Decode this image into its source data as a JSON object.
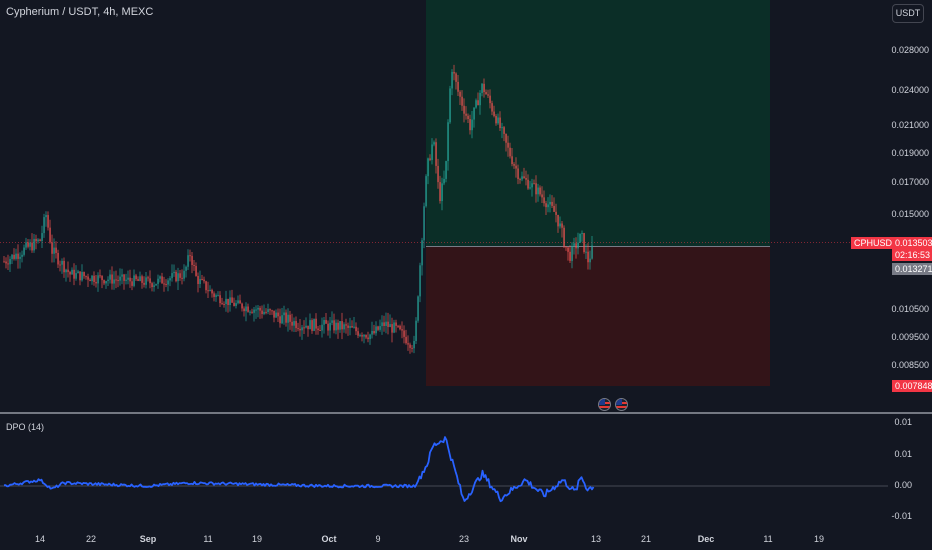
{
  "header": {
    "symbol_line": "Cypherium / USDT, 4h, MEXC",
    "currency_button": "USDT"
  },
  "price_axis": {
    "labels": [
      "0.028000",
      "0.024000",
      "0.021000",
      "0.019000",
      "0.017000",
      "0.015000",
      "0.010500",
      "0.009500",
      "0.008500"
    ]
  },
  "tags": {
    "symbol": "CPHUSDT",
    "last_price": "0.013503",
    "countdown": "02:16:53",
    "entry_price": "0.013271",
    "stop_price": "0.007848"
  },
  "indicator": {
    "title": "DPO (14)",
    "axis_labels": [
      "0.01",
      "0.01",
      "0.00",
      "-0.01"
    ]
  },
  "time_axis": {
    "labels": [
      {
        "text": "14",
        "bold": false
      },
      {
        "text": "22",
        "bold": false
      },
      {
        "text": "Sep",
        "bold": true
      },
      {
        "text": "11",
        "bold": false
      },
      {
        "text": "19",
        "bold": false
      },
      {
        "text": "Oct",
        "bold": true
      },
      {
        "text": "9",
        "bold": false
      },
      {
        "text": "23",
        "bold": false
      },
      {
        "text": "Nov",
        "bold": true
      },
      {
        "text": "13",
        "bold": false
      },
      {
        "text": "21",
        "bold": false
      },
      {
        "text": "Dec",
        "bold": true
      },
      {
        "text": "11",
        "bold": false
      },
      {
        "text": "19",
        "bold": false
      }
    ]
  },
  "colors": {
    "background": "#131722",
    "up": "#26a69a",
    "down": "#ef5350",
    "dpo_line": "#2962ff",
    "profit_zone": "#0b2e27",
    "loss_zone": "#331418",
    "price_tag": "#f23645",
    "entry_tag": "#787b86"
  },
  "chart_data": [
    {
      "type": "candlestick",
      "title": "Cypherium / USDT, 4h, MEXC",
      "price_range": [
        0.0075,
        0.0305
      ],
      "last_price": 0.013503,
      "position": {
        "type": "long",
        "entry": 0.013271,
        "stop": 0.007848,
        "target": "above 0.030000"
      },
      "path": [
        {
          "date": "Aug 8",
          "price": 0.0128
        },
        {
          "date": "Aug 14",
          "price": 0.0138
        },
        {
          "date": "Aug 15",
          "price": 0.015
        },
        {
          "date": "Aug 16",
          "price": 0.0133
        },
        {
          "date": "Aug 19",
          "price": 0.0122
        },
        {
          "date": "Aug 24",
          "price": 0.012
        },
        {
          "date": "Sep 2",
          "price": 0.0118
        },
        {
          "date": "Sep 7",
          "price": 0.0122
        },
        {
          "date": "Sep 8",
          "price": 0.0132
        },
        {
          "date": "Sep 9",
          "price": 0.012
        },
        {
          "date": "Sep 12",
          "price": 0.0112
        },
        {
          "date": "Sep 15",
          "price": 0.0108
        },
        {
          "date": "Sep 21",
          "price": 0.0104
        },
        {
          "date": "Sep 26",
          "price": 0.01
        },
        {
          "date": "Oct 3",
          "price": 0.0099
        },
        {
          "date": "Oct 8",
          "price": 0.0096
        },
        {
          "date": "Oct 10",
          "price": 0.01
        },
        {
          "date": "Oct 12",
          "price": 0.0098
        },
        {
          "date": "Oct 15",
          "price": 0.0092
        },
        {
          "date": "Oct 16",
          "price": 0.0133
        },
        {
          "date": "Oct 17",
          "price": 0.018
        },
        {
          "date": "Oct 18",
          "price": 0.02
        },
        {
          "date": "Oct 19",
          "price": 0.016
        },
        {
          "date": "Oct 20",
          "price": 0.0175
        },
        {
          "date": "Oct 21",
          "price": 0.0265
        },
        {
          "date": "Oct 22",
          "price": 0.024
        },
        {
          "date": "Oct 24",
          "price": 0.021
        },
        {
          "date": "Oct 26",
          "price": 0.0245
        },
        {
          "date": "Oct 28",
          "price": 0.022
        },
        {
          "date": "Oct 30",
          "price": 0.0195
        },
        {
          "date": "Nov 1",
          "price": 0.0175
        },
        {
          "date": "Nov 4",
          "price": 0.0165
        },
        {
          "date": "Nov 7",
          "price": 0.015
        },
        {
          "date": "Nov 9",
          "price": 0.013
        },
        {
          "date": "Nov 11",
          "price": 0.014
        },
        {
          "date": "Nov 12",
          "price": 0.0128
        },
        {
          "date": "Nov 13",
          "price": 0.0135
        }
      ]
    },
    {
      "type": "line",
      "title": "DPO (14)",
      "ylim": [
        -0.015,
        0.018
      ],
      "path": [
        {
          "date": "Aug 8",
          "value": 0.0
        },
        {
          "date": "Aug 14",
          "value": 0.002
        },
        {
          "date": "Aug 16",
          "value": -0.001
        },
        {
          "date": "Aug 18",
          "value": 0.001
        },
        {
          "date": "Sep 1",
          "value": 0.0
        },
        {
          "date": "Sep 8",
          "value": 0.001
        },
        {
          "date": "Oct 1",
          "value": 0.0
        },
        {
          "date": "Oct 15",
          "value": 0.0
        },
        {
          "date": "Oct 17",
          "value": 0.007
        },
        {
          "date": "Oct 18",
          "value": 0.013
        },
        {
          "date": "Oct 20",
          "value": 0.0155
        },
        {
          "date": "Oct 22",
          "value": 0.002
        },
        {
          "date": "Oct 23",
          "value": -0.005
        },
        {
          "date": "Oct 26",
          "value": 0.004
        },
        {
          "date": "Oct 29",
          "value": -0.004
        },
        {
          "date": "Nov 2",
          "value": 0.002
        },
        {
          "date": "Nov 5",
          "value": -0.003
        },
        {
          "date": "Nov 8",
          "value": 0.002
        },
        {
          "date": "Nov 10",
          "value": -0.002
        },
        {
          "date": "Nov 11",
          "value": 0.003
        },
        {
          "date": "Nov 12",
          "value": -0.001
        },
        {
          "date": "Nov 13",
          "value": 0.0
        }
      ]
    }
  ]
}
